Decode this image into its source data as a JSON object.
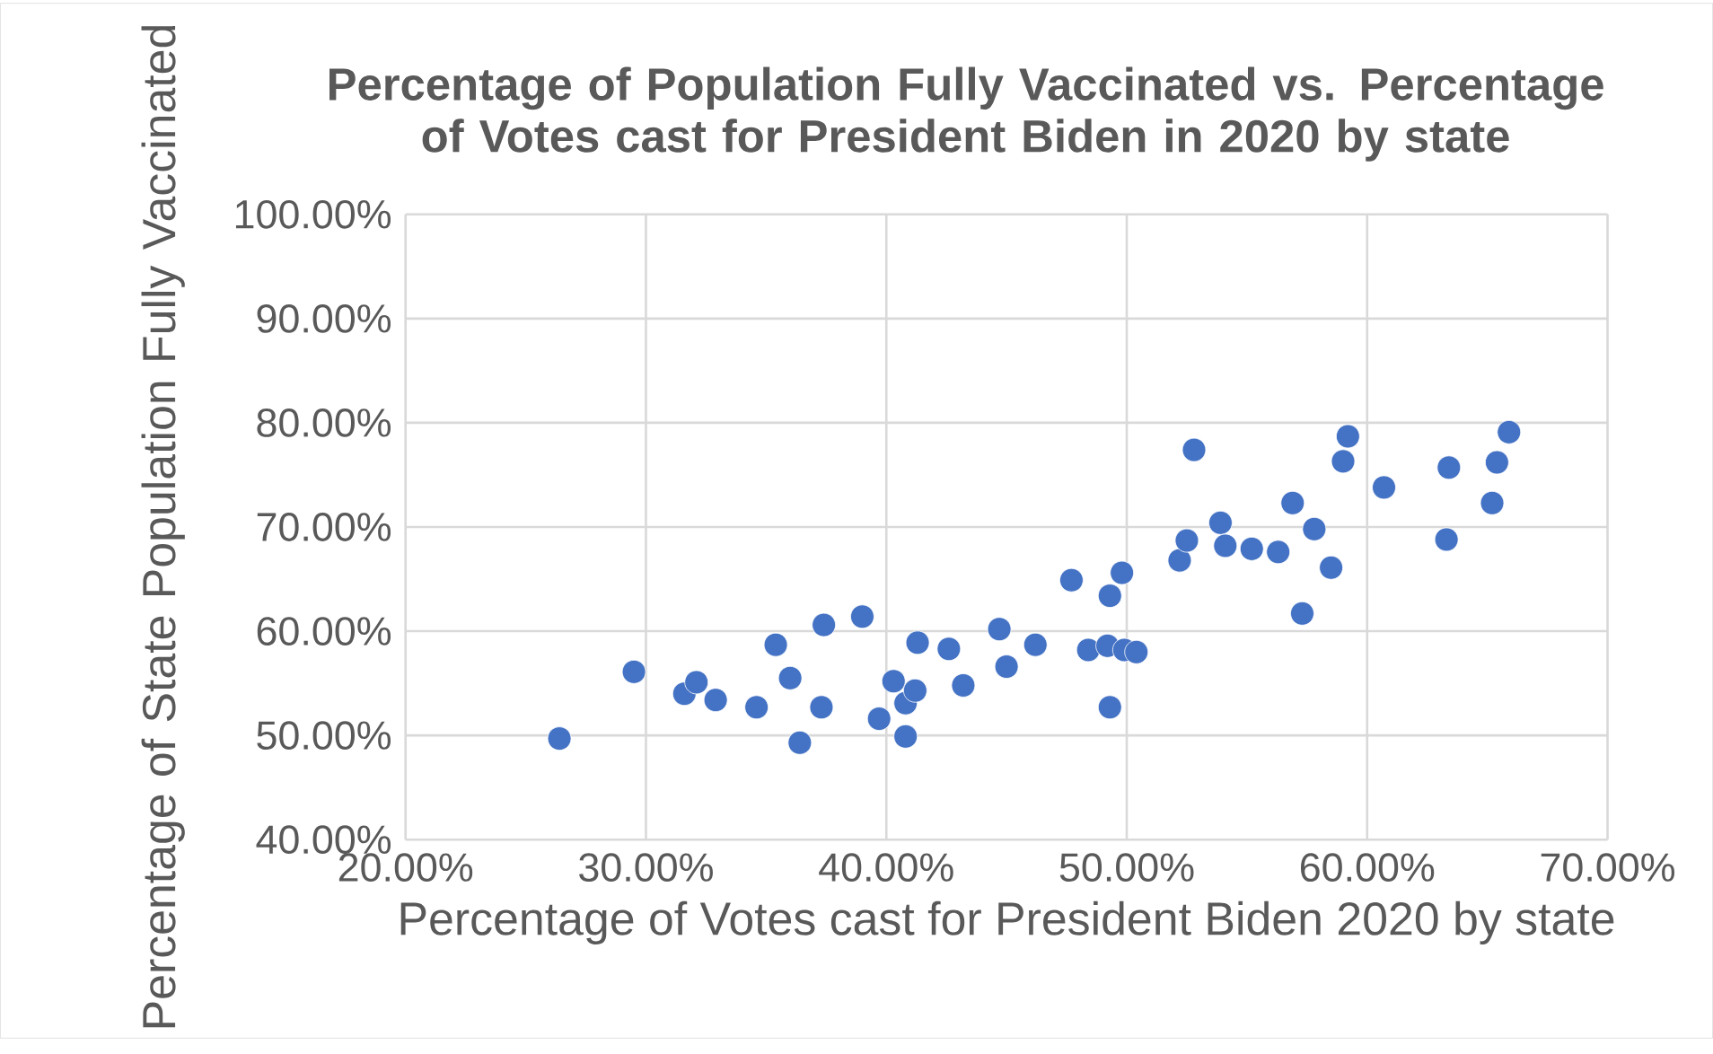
{
  "chart_data": {
    "type": "scatter",
    "title": "Percentage of Population Fully Vaccinated vs. Percentage of Votes cast for President Biden in 2020 by state",
    "xlabel": "Percentage of Votes cast for President Biden 2020 by state",
    "ylabel": "Percentage of State Population Fully Vaccinated",
    "xlim": [
      20,
      70
    ],
    "ylim": [
      40,
      100
    ],
    "xticks": [
      {
        "value": 20,
        "label": "20.00%"
      },
      {
        "value": 30,
        "label": "30.00%"
      },
      {
        "value": 40,
        "label": "40.00%"
      },
      {
        "value": 50,
        "label": "50.00%"
      },
      {
        "value": 60,
        "label": "60.00%"
      },
      {
        "value": 70,
        "label": "70.00%"
      }
    ],
    "yticks": [
      {
        "value": 40,
        "label": "40.00%"
      },
      {
        "value": 50,
        "label": "50.00%"
      },
      {
        "value": 60,
        "label": "60.00%"
      },
      {
        "value": 70,
        "label": "70.00%"
      },
      {
        "value": 80,
        "label": "80.00%"
      },
      {
        "value": 90,
        "label": "90.00%"
      },
      {
        "value": 100,
        "label": "100.00%"
      }
    ],
    "grid": true,
    "marker": "circle",
    "series": [
      {
        "color": "#4472c4",
        "x": [
          26.4,
          29.5,
          31.6,
          32.1,
          32.9,
          34.6,
          35.4,
          36.0,
          36.4,
          37.3,
          37.4,
          39.0,
          39.7,
          40.3,
          40.8,
          40.8,
          41.2,
          41.3,
          42.6,
          43.2,
          44.7,
          45.0,
          46.2,
          47.7,
          48.4,
          49.2,
          49.3,
          49.3,
          49.8,
          49.9,
          50.4,
          52.2,
          52.5,
          52.8,
          53.9,
          54.1,
          55.2,
          56.3,
          56.9,
          57.3,
          57.8,
          58.5,
          59.0,
          59.2,
          60.7,
          63.3,
          63.4,
          65.2,
          65.4,
          65.9
        ],
        "values": [
          49.7,
          56.1,
          54.0,
          55.1,
          53.4,
          52.7,
          58.7,
          55.5,
          49.3,
          52.7,
          60.6,
          61.4,
          51.6,
          55.2,
          49.9,
          53.1,
          54.3,
          58.9,
          58.3,
          54.8,
          60.2,
          56.6,
          58.7,
          64.9,
          58.2,
          58.6,
          63.4,
          52.7,
          65.6,
          58.2,
          58.0,
          66.8,
          68.7,
          77.4,
          70.4,
          68.2,
          67.9,
          67.6,
          72.3,
          61.7,
          69.8,
          66.1,
          76.3,
          78.7,
          73.8,
          68.8,
          75.7,
          72.3,
          76.2,
          79.1
        ]
      }
    ]
  }
}
